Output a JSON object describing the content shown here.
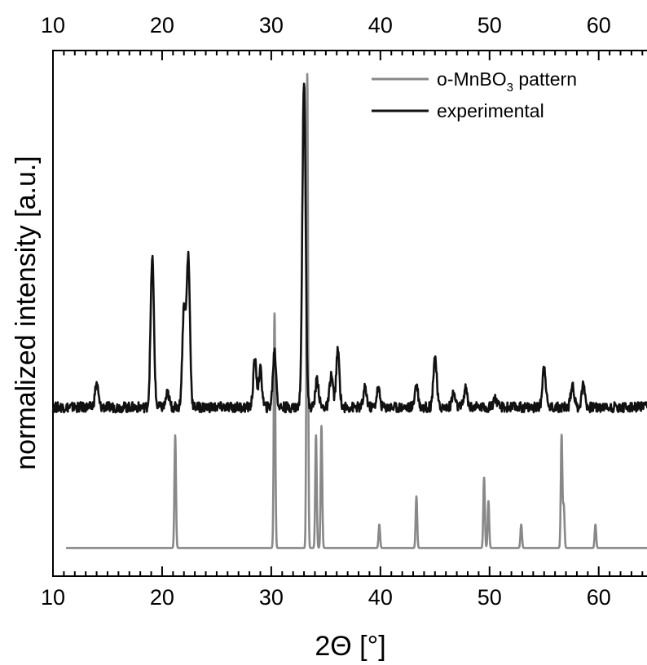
{
  "chart_data": {
    "type": "line",
    "xlabel": "2Θ [°]",
    "ylabel": "normalized intensity [a.u.]",
    "xlim": [
      10,
      64.5
    ],
    "ylim": [
      0,
      1.12
    ],
    "x_ticks": [
      10,
      20,
      30,
      40,
      50,
      60
    ],
    "x_tick_labels": [
      "10",
      "20",
      "30",
      "40",
      "50",
      "60"
    ],
    "legend_position": "top-right",
    "series": [
      {
        "key": "reference",
        "legend_prefix": "o-MnBO",
        "legend_sub": "3",
        "legend_suffix": " pattern",
        "color": "#888888",
        "x_start": 11.2,
        "x_end": 64.5,
        "baseline": 0.06,
        "peaks": [
          {
            "x": 21.2,
            "y": 0.3
          },
          {
            "x": 30.3,
            "y": 0.56
          },
          {
            "x": 33.3,
            "y": 1.07
          },
          {
            "x": 34.1,
            "y": 0.3
          },
          {
            "x": 34.6,
            "y": 0.32
          },
          {
            "x": 39.9,
            "y": 0.11
          },
          {
            "x": 43.3,
            "y": 0.17
          },
          {
            "x": 49.5,
            "y": 0.21
          },
          {
            "x": 49.9,
            "y": 0.16
          },
          {
            "x": 52.9,
            "y": 0.11
          },
          {
            "x": 56.6,
            "y": 0.3
          },
          {
            "x": 56.8,
            "y": 0.15
          },
          {
            "x": 59.7,
            "y": 0.11
          }
        ]
      },
      {
        "key": "experimental",
        "legend_label": "experimental",
        "color": "#111111",
        "x_start": 10.0,
        "x_end": 64.5,
        "baseline": 0.36,
        "peaks": [
          {
            "x": 14.0,
            "y": 0.41
          },
          {
            "x": 19.1,
            "y": 0.68
          },
          {
            "x": 20.5,
            "y": 0.39
          },
          {
            "x": 22.0,
            "y": 0.57
          },
          {
            "x": 22.4,
            "y": 0.68
          },
          {
            "x": 28.5,
            "y": 0.46
          },
          {
            "x": 29.0,
            "y": 0.44
          },
          {
            "x": 30.3,
            "y": 0.48
          },
          {
            "x": 33.0,
            "y": 1.06
          },
          {
            "x": 34.2,
            "y": 0.42
          },
          {
            "x": 35.5,
            "y": 0.43
          },
          {
            "x": 36.1,
            "y": 0.48
          },
          {
            "x": 38.6,
            "y": 0.4
          },
          {
            "x": 39.8,
            "y": 0.4
          },
          {
            "x": 43.3,
            "y": 0.41
          },
          {
            "x": 45.0,
            "y": 0.47
          },
          {
            "x": 46.7,
            "y": 0.39
          },
          {
            "x": 47.8,
            "y": 0.4
          },
          {
            "x": 50.5,
            "y": 0.38
          },
          {
            "x": 55.0,
            "y": 0.45
          },
          {
            "x": 57.6,
            "y": 0.41
          },
          {
            "x": 58.6,
            "y": 0.41
          }
        ]
      }
    ]
  }
}
